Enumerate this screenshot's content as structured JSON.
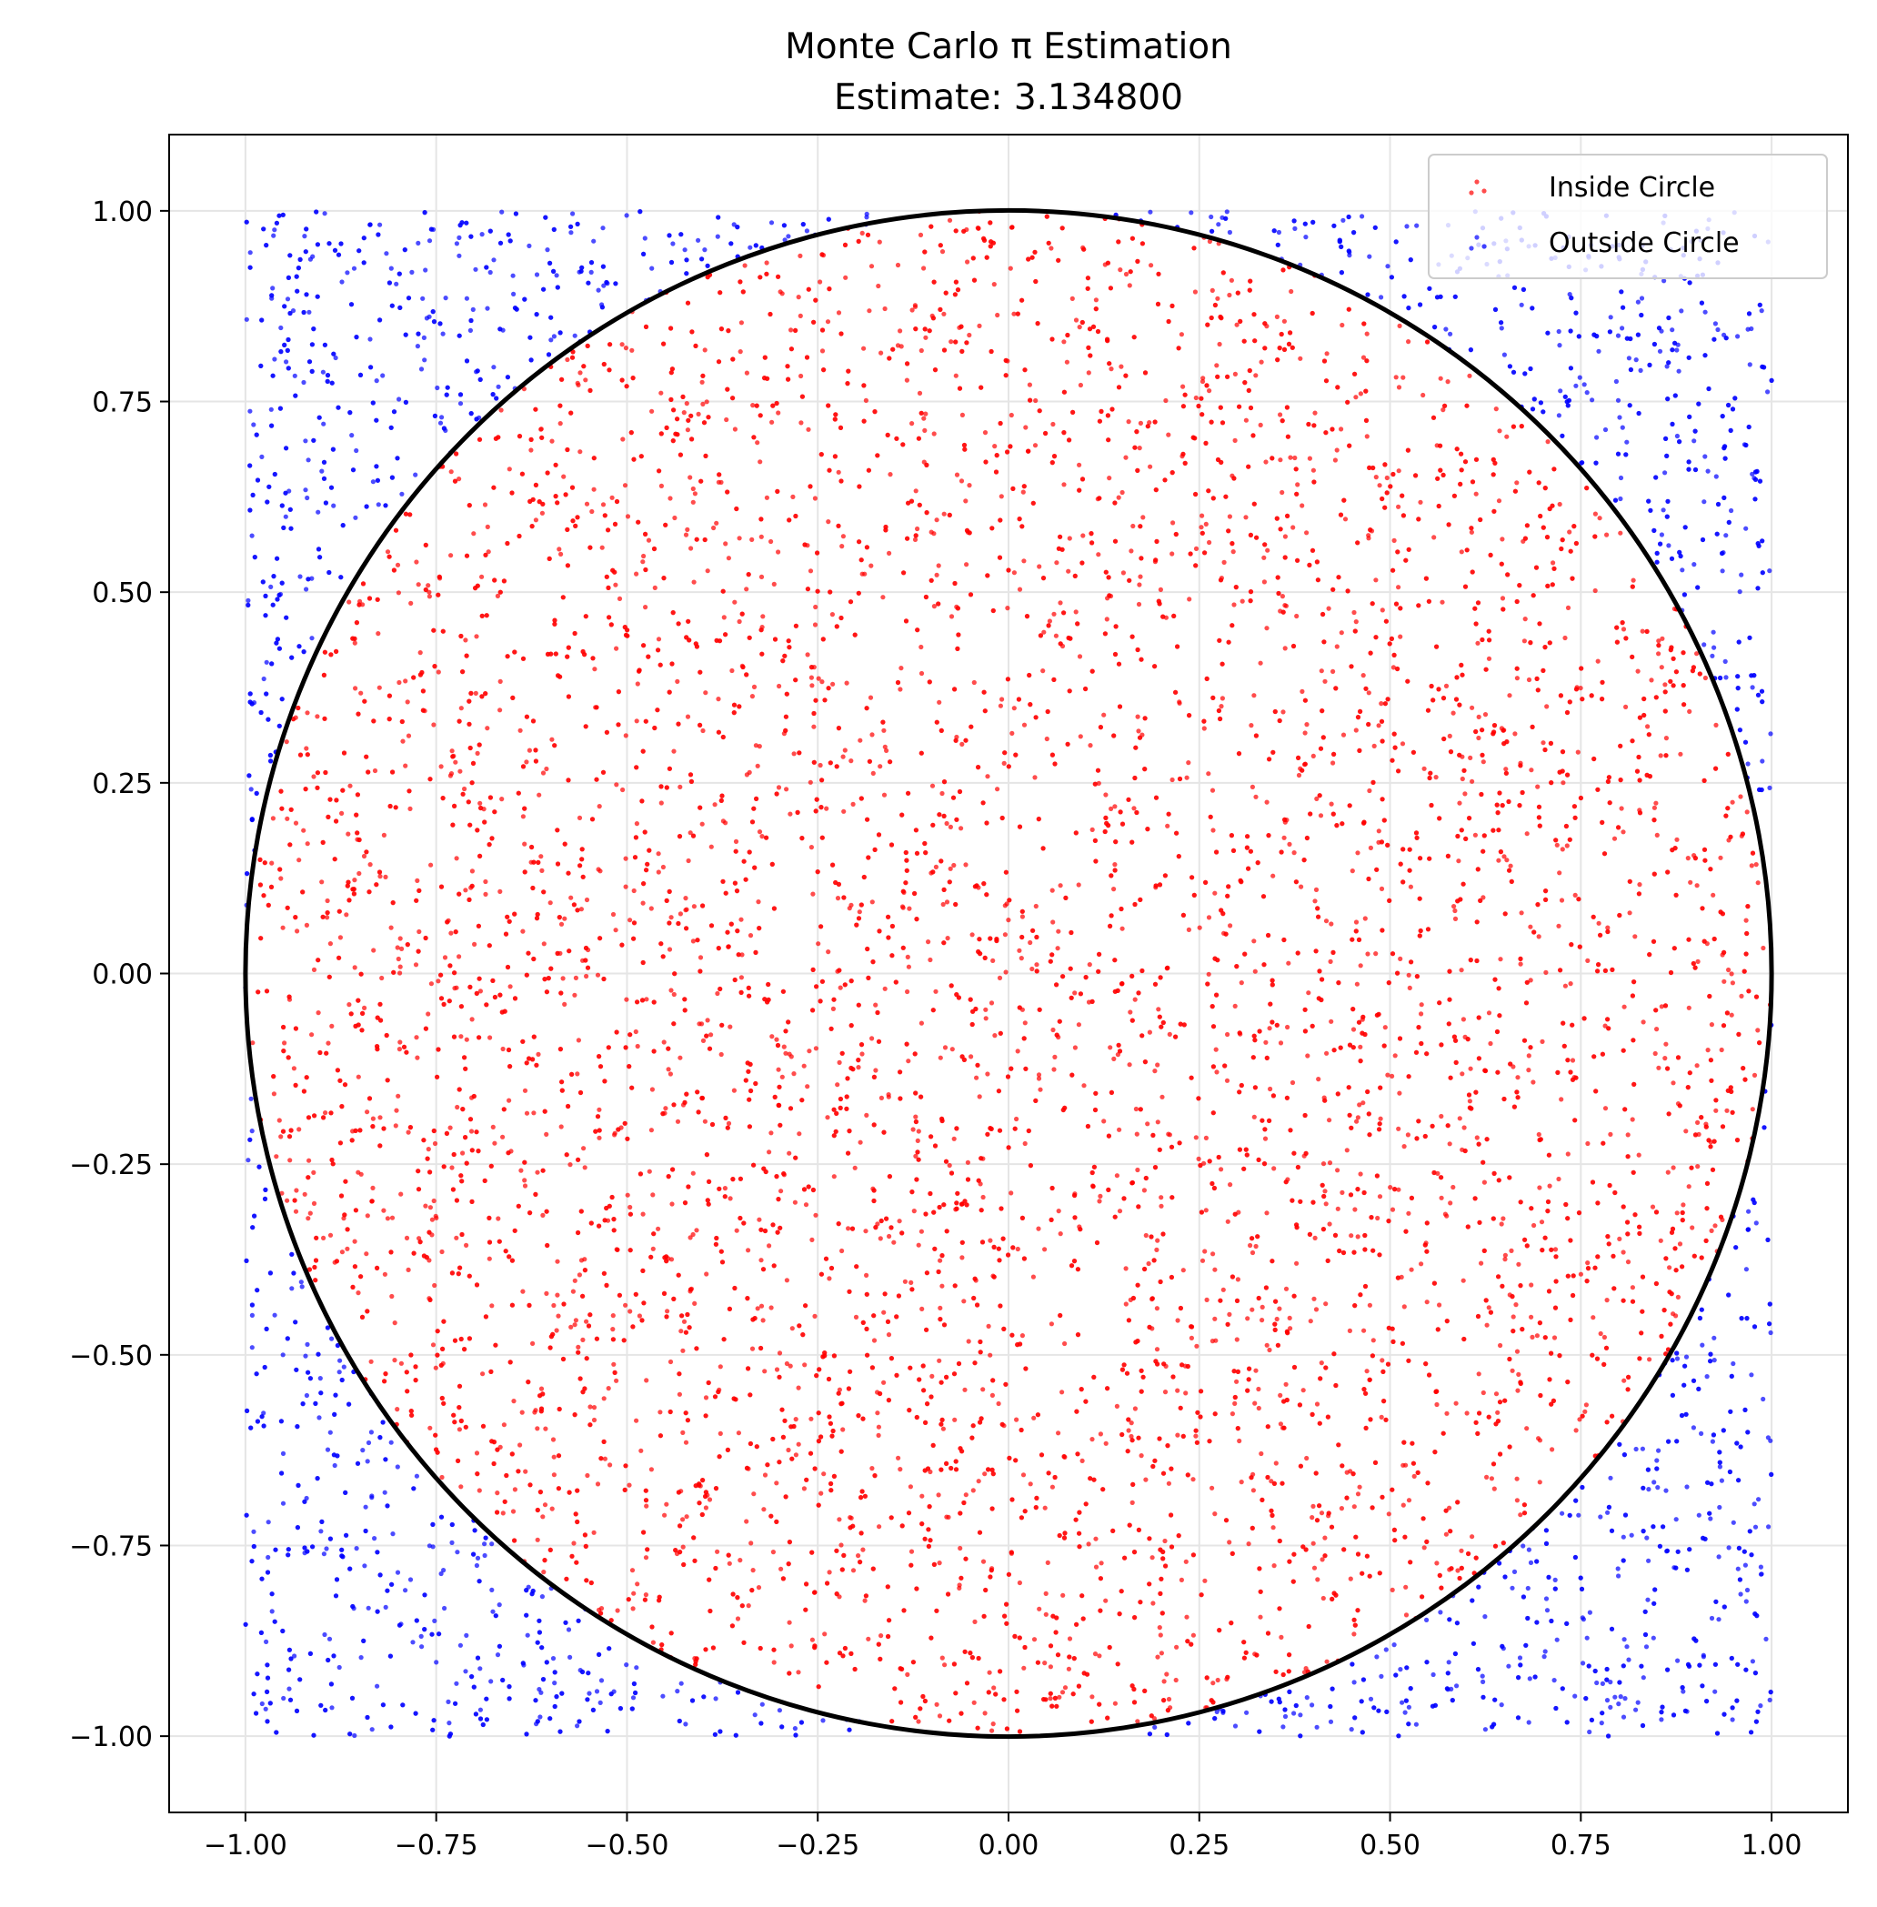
{
  "chart_data": {
    "type": "scatter",
    "title": "Monte Carlo π Estimation",
    "subtitle": "Estimate: 3.134800",
    "estimate": 3.1348,
    "xlabel": "",
    "ylabel": "",
    "xlim": [
      -1.1,
      1.1
    ],
    "ylim": [
      -1.1,
      1.1
    ],
    "xticks": [
      -1.0,
      -0.75,
      -0.5,
      -0.25,
      0.0,
      0.25,
      0.5,
      0.75,
      1.0
    ],
    "yticks": [
      -1.0,
      -0.75,
      -0.5,
      -0.25,
      0.0,
      0.25,
      0.5,
      0.75,
      1.0
    ],
    "xtick_labels": [
      "−1.00",
      "−0.75",
      "−0.50",
      "−0.25",
      "0.00",
      "0.25",
      "0.50",
      "0.75",
      "1.00"
    ],
    "ytick_labels": [
      "−1.00",
      "−0.75",
      "−0.50",
      "−0.25",
      "0.00",
      "0.25",
      "0.50",
      "0.75",
      "1.00"
    ],
    "grid": true,
    "legend_position": "top-right",
    "circle": {
      "center": [
        0,
        0
      ],
      "radius": 1,
      "color": "#000000"
    },
    "sample_region": {
      "x": [
        -1,
        1
      ],
      "y": [
        -1,
        1
      ]
    },
    "series": [
      {
        "name": "Inside Circle",
        "color": "#ff0000",
        "opacity": 0.7
      },
      {
        "name": "Outside Circle",
        "color": "#0000ff",
        "opacity": 0.7
      }
    ]
  }
}
